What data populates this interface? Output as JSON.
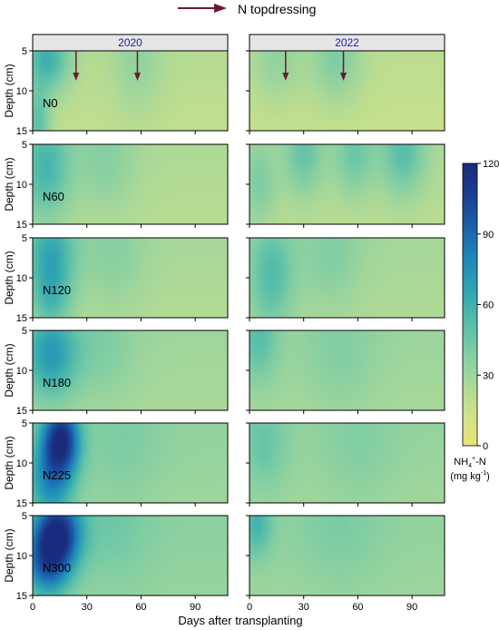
{
  "chart_data": {
    "type": "heatmap",
    "legend": {
      "arrow_label": "N topdressing",
      "placement": "top-center"
    },
    "xlabel": "Days after transplanting",
    "ylabel": "Depth (cm)",
    "xlim": [
      0,
      108
    ],
    "ylim": [
      5,
      15
    ],
    "x_ticks": [
      "0",
      "30",
      "60",
      "90"
    ],
    "x_tick_values": [
      0,
      30,
      60,
      90
    ],
    "y_ticks": [
      "5",
      "10",
      "15"
    ],
    "y_tick_values": [
      5,
      10,
      15
    ],
    "years": [
      {
        "label": "2020",
        "topdressing_days": [
          24,
          58
        ]
      },
      {
        "label": "2022",
        "topdressing_days": [
          20,
          52
        ]
      }
    ],
    "treatments": [
      "N0",
      "N60",
      "N120",
      "N180",
      "N225",
      "N300"
    ],
    "colorbar": {
      "min": 0,
      "max": 120,
      "ticks": [
        "120",
        "90",
        "60",
        "30",
        "0"
      ],
      "tick_values": [
        120,
        90,
        60,
        30,
        0
      ],
      "label_main": "NH",
      "label_sub": "4",
      "label_sup": "+",
      "label_rest": "-N",
      "unit_main": "(mg kg",
      "unit_sup": "-1",
      "unit_rest": ")",
      "colors": [
        "#e8e47a",
        "#cfe289",
        "#a8d899",
        "#7fcda4",
        "#52bcaa",
        "#2ea3b3",
        "#1f85bb",
        "#1c5fa8",
        "#1a3f93",
        "#1a2a7c"
      ]
    },
    "baseline_nh4": {
      "2020": {
        "N0": 22,
        "N60": 25,
        "N120": 27,
        "N180": 30,
        "N225": 34,
        "N300": 36
      },
      "2022": {
        "N0": 20,
        "N60": 24,
        "N120": 28,
        "N180": 31,
        "N225": 33,
        "N300": 34
      }
    },
    "hotspots": {
      "2020": {
        "N0": [
          {
            "day": 8,
            "depth": 6,
            "value": 60,
            "sd": 9,
            "sz": 3
          },
          {
            "day": 3,
            "depth": 14,
            "value": 52,
            "sd": 5,
            "sz": 3
          },
          {
            "day": 58,
            "depth": 6,
            "value": 34,
            "sd": 10,
            "sz": 5
          }
        ],
        "N60": [
          {
            "day": 7,
            "depth": 8,
            "value": 58,
            "sd": 10,
            "sz": 5
          },
          {
            "day": 40,
            "depth": 7,
            "value": 38,
            "sd": 12,
            "sz": 5
          }
        ],
        "N120": [
          {
            "day": 10,
            "depth": 7,
            "value": 64,
            "sd": 10,
            "sz": 4
          },
          {
            "day": 10,
            "depth": 13,
            "value": 50,
            "sd": 8,
            "sz": 3
          },
          {
            "day": 45,
            "depth": 7,
            "value": 38,
            "sd": 12,
            "sz": 5
          }
        ],
        "N180": [
          {
            "day": 10,
            "depth": 8,
            "value": 72,
            "sd": 11,
            "sz": 4
          },
          {
            "day": 40,
            "depth": 7,
            "value": 40,
            "sd": 12,
            "sz": 5
          }
        ],
        "N225": [
          {
            "day": 16,
            "depth": 7,
            "value": 108,
            "sd": 7,
            "sz": 3
          },
          {
            "day": 10,
            "depth": 12,
            "value": 80,
            "sd": 9,
            "sz": 4
          },
          {
            "day": 50,
            "depth": 8,
            "value": 42,
            "sd": 14,
            "sz": 5
          }
        ],
        "N300": [
          {
            "day": 14,
            "depth": 7,
            "value": 112,
            "sd": 9,
            "sz": 3
          },
          {
            "day": 8,
            "depth": 11,
            "value": 92,
            "sd": 9,
            "sz": 3
          },
          {
            "day": 45,
            "depth": 7,
            "value": 45,
            "sd": 14,
            "sz": 5
          }
        ]
      },
      "2022": {
        "N0": [
          {
            "day": 48,
            "depth": 6,
            "value": 40,
            "sd": 10,
            "sz": 4
          },
          {
            "day": 15,
            "depth": 6,
            "value": 34,
            "sd": 10,
            "sz": 4
          }
        ],
        "N60": [
          {
            "day": 5,
            "depth": 10,
            "value": 42,
            "sd": 7,
            "sz": 4
          },
          {
            "day": 30,
            "depth": 6,
            "value": 48,
            "sd": 8,
            "sz": 4
          },
          {
            "day": 58,
            "depth": 6,
            "value": 46,
            "sd": 8,
            "sz": 4
          },
          {
            "day": 85,
            "depth": 6,
            "value": 52,
            "sd": 9,
            "sz": 4
          }
        ],
        "N120": [
          {
            "day": 12,
            "depth": 10,
            "value": 55,
            "sd": 9,
            "sz": 5
          },
          {
            "day": 45,
            "depth": 7,
            "value": 40,
            "sd": 12,
            "sz": 5
          }
        ],
        "N180": [
          {
            "day": 5,
            "depth": 6,
            "value": 52,
            "sd": 8,
            "sz": 4
          },
          {
            "day": 50,
            "depth": 8,
            "value": 40,
            "sd": 14,
            "sz": 5
          }
        ],
        "N225": [
          {
            "day": 8,
            "depth": 8,
            "value": 48,
            "sd": 9,
            "sz": 4
          },
          {
            "day": 60,
            "depth": 8,
            "value": 40,
            "sd": 14,
            "sz": 5
          }
        ],
        "N300": [
          {
            "day": 4,
            "depth": 6,
            "value": 58,
            "sd": 6,
            "sz": 3
          },
          {
            "day": 50,
            "depth": 7,
            "value": 42,
            "sd": 16,
            "sz": 5
          }
        ]
      }
    }
  }
}
